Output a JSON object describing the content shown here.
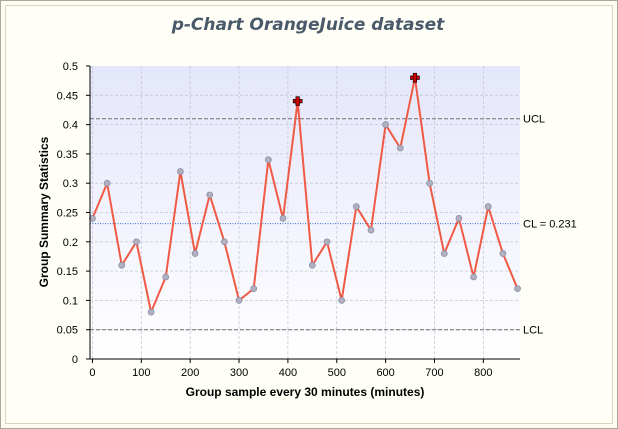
{
  "chart_data": {
    "type": "line",
    "title": "p-Chart OrangeJuice dataset",
    "xlabel": "Group sample every 30 minutes (minutes)",
    "ylabel": "Group Summary Statistics",
    "xlim": [
      -5,
      875
    ],
    "ylim": [
      0,
      0.5
    ],
    "x_ticks": [
      0,
      100,
      200,
      300,
      400,
      500,
      600,
      700,
      800
    ],
    "y_ticks": [
      0,
      0.05,
      0.1,
      0.15,
      0.2,
      0.25,
      0.3,
      0.35,
      0.4,
      0.45,
      0.5
    ],
    "y_tick_labels": [
      "0",
      "0.05",
      "0.1",
      "0.15",
      "0.2",
      "0.25",
      "0.3",
      "0.35",
      "0.4",
      "0.45",
      "0.5"
    ],
    "grid": true,
    "series": [
      {
        "x": [
          0,
          30,
          60,
          90,
          120,
          150,
          180,
          210,
          240,
          270,
          300,
          330,
          360,
          390,
          420,
          450,
          480,
          510,
          540,
          570,
          600,
          630,
          660,
          690,
          720,
          750,
          780,
          810,
          840,
          870
        ],
        "values": [
          0.24,
          0.3,
          0.16,
          0.2,
          0.08,
          0.14,
          0.32,
          0.18,
          0.28,
          0.2,
          0.1,
          0.12,
          0.34,
          0.24,
          0.44,
          0.16,
          0.2,
          0.1,
          0.26,
          0.22,
          0.4,
          0.36,
          0.48,
          0.3,
          0.18,
          0.24,
          0.14,
          0.26,
          0.18,
          0.12
        ],
        "color": "#f05a45",
        "marker_color": "#b0b0c0"
      }
    ],
    "out_of_control_x": [
      420,
      660
    ],
    "out_of_control_marker_color": "#cc0000",
    "control_limits": [
      {
        "name": "UCL",
        "value": 0.41,
        "color": "#707070",
        "style": "dashed"
      },
      {
        "name": "CL = 0.231",
        "value": 0.231,
        "color": "#3070d0",
        "style": "dotted"
      },
      {
        "name": "LCL",
        "value": 0.05,
        "color": "#707070",
        "style": "dashed"
      }
    ],
    "plot_background": [
      "#e4e6fb",
      "#ffffff"
    ]
  }
}
